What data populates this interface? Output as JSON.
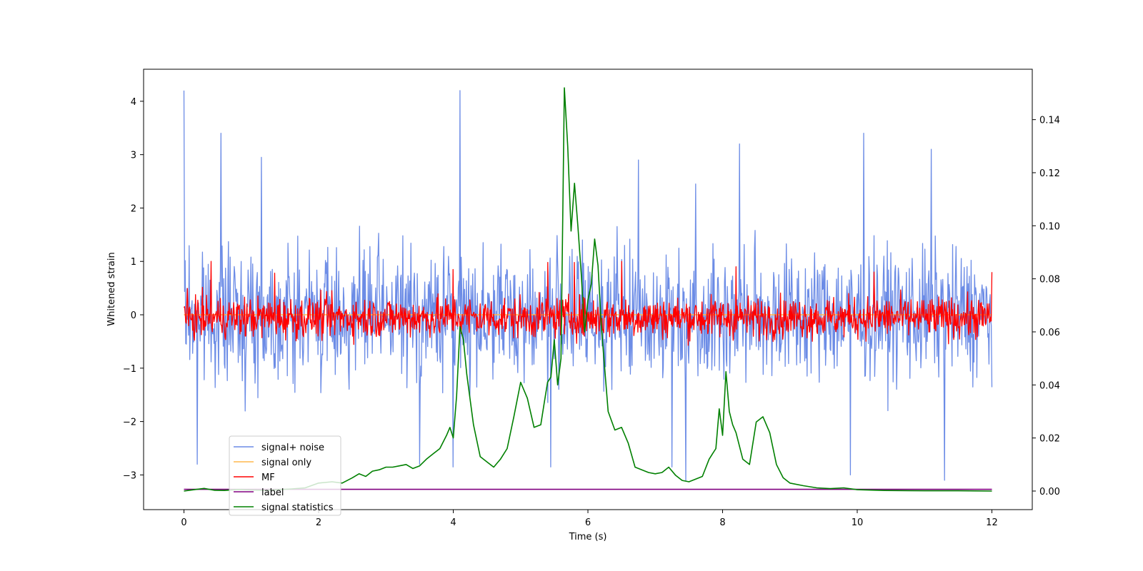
{
  "chart_data": {
    "type": "line",
    "title": "",
    "xlabel": "Time (s)",
    "ylabel": "Whitened strain",
    "y2label": "",
    "xlim": [
      -0.6,
      12.6
    ],
    "ylim": [
      -3.65,
      4.6
    ],
    "y2lim": [
      -0.007,
      0.159
    ],
    "xticks": [
      0,
      2,
      4,
      6,
      8,
      10,
      12
    ],
    "xtick_labels": [
      "0",
      "2",
      "4",
      "6",
      "8",
      "10",
      "12"
    ],
    "yticks": [
      -3,
      -2,
      -1,
      0,
      1,
      2,
      3,
      4
    ],
    "ytick_labels": [
      "−3",
      "−2",
      "−1",
      "0",
      "1",
      "2",
      "3",
      "4"
    ],
    "y2ticks": [
      0,
      0.02,
      0.04,
      0.06,
      0.08,
      0.1,
      0.12,
      0.14
    ],
    "y2tick_labels": [
      "0.00",
      "0.02",
      "0.04",
      "0.06",
      "0.08",
      "0.10",
      "0.12",
      "0.14"
    ],
    "grid": false,
    "legend_position": "lower-left",
    "series": [
      {
        "name": "signal+ noise",
        "axis": "left",
        "color": "#6c8ce6",
        "style": "noise",
        "x_range": [
          0,
          12
        ],
        "amplitude": 1.1,
        "center": 0,
        "peaks": [
          [
            0.0,
            4.2
          ],
          [
            0.55,
            3.4
          ],
          [
            1.15,
            2.95
          ],
          [
            4.1,
            4.2
          ],
          [
            6.75,
            2.9
          ],
          [
            7.6,
            2.45
          ],
          [
            8.25,
            3.2
          ],
          [
            10.1,
            3.4
          ],
          [
            11.1,
            3.1
          ],
          [
            7.25,
            -2.85
          ],
          [
            7.45,
            -3.1
          ],
          [
            11.3,
            -3.1
          ],
          [
            4.0,
            -2.85
          ],
          [
            0.2,
            -2.8
          ],
          [
            9.9,
            -3.0
          ],
          [
            5.45,
            -2.85
          ],
          [
            3.5,
            -2.8
          ]
        ]
      },
      {
        "name": "signal only",
        "axis": "left",
        "color": "#ffb84d",
        "style": "flat",
        "x_range": [
          0,
          12
        ],
        "value": 0
      },
      {
        "name": "MF",
        "axis": "left",
        "color": "#ff0000",
        "style": "noise",
        "x_range": [
          0,
          12
        ],
        "amplitude": 0.35,
        "center": -0.05,
        "peaks": [
          [
            0.4,
            1.0
          ],
          [
            1.35,
            0.78
          ],
          [
            4.0,
            0.85
          ],
          [
            5.4,
            0.98
          ],
          [
            5.8,
            0.98
          ],
          [
            6.5,
            1.0
          ],
          [
            8.2,
            0.9
          ],
          [
            10.25,
            0.8
          ],
          [
            12.0,
            0.8
          ]
        ]
      },
      {
        "name": "label",
        "axis": "left",
        "color": "#800080",
        "style": "flat",
        "x_range": [
          0,
          12
        ],
        "value": -3.27
      },
      {
        "name": "signal statistics",
        "axis": "right",
        "color": "#008000",
        "style": "line",
        "x": [
          0,
          0.15,
          0.3,
          0.45,
          0.6,
          0.8,
          1.0,
          1.2,
          1.4,
          1.6,
          1.8,
          2.0,
          2.2,
          2.35,
          2.5,
          2.6,
          2.7,
          2.8,
          2.9,
          3.0,
          3.1,
          3.2,
          3.3,
          3.4,
          3.5,
          3.6,
          3.7,
          3.8,
          3.9,
          3.95,
          4.0,
          4.05,
          4.1,
          4.15,
          4.2,
          4.3,
          4.4,
          4.5,
          4.6,
          4.7,
          4.8,
          4.9,
          5.0,
          5.1,
          5.2,
          5.3,
          5.35,
          5.4,
          5.45,
          5.5,
          5.55,
          5.6,
          5.65,
          5.7,
          5.75,
          5.8,
          5.85,
          5.9,
          5.95,
          6.0,
          6.05,
          6.1,
          6.15,
          6.2,
          6.3,
          6.4,
          6.5,
          6.6,
          6.7,
          6.8,
          6.9,
          7.0,
          7.1,
          7.2,
          7.3,
          7.4,
          7.5,
          7.6,
          7.7,
          7.8,
          7.85,
          7.9,
          7.95,
          8.0,
          8.05,
          8.1,
          8.15,
          8.2,
          8.3,
          8.4,
          8.5,
          8.6,
          8.7,
          8.8,
          8.9,
          9.0,
          9.2,
          9.4,
          9.6,
          9.8,
          10.0,
          10.4,
          11.0,
          11.5,
          12.0
        ],
        "y": [
          0.0,
          0.0005,
          0.001,
          0.0003,
          0.0002,
          0.0006,
          0.0004,
          0.0003,
          0.0005,
          0.0008,
          0.0012,
          0.003,
          0.0035,
          0.003,
          0.005,
          0.0065,
          0.0055,
          0.0075,
          0.008,
          0.009,
          0.009,
          0.0095,
          0.01,
          0.0085,
          0.0095,
          0.012,
          0.014,
          0.016,
          0.021,
          0.024,
          0.02,
          0.036,
          0.062,
          0.057,
          0.044,
          0.025,
          0.013,
          0.011,
          0.009,
          0.012,
          0.016,
          0.028,
          0.041,
          0.035,
          0.024,
          0.025,
          0.033,
          0.041,
          0.043,
          0.057,
          0.04,
          0.05,
          0.152,
          0.13,
          0.098,
          0.116,
          0.1,
          0.082,
          0.06,
          0.072,
          0.078,
          0.095,
          0.085,
          0.062,
          0.03,
          0.023,
          0.024,
          0.018,
          0.009,
          0.008,
          0.007,
          0.0065,
          0.007,
          0.009,
          0.006,
          0.004,
          0.0035,
          0.0045,
          0.0055,
          0.012,
          0.014,
          0.016,
          0.031,
          0.021,
          0.045,
          0.03,
          0.025,
          0.022,
          0.012,
          0.01,
          0.026,
          0.028,
          0.022,
          0.01,
          0.005,
          0.003,
          0.002,
          0.0012,
          0.0009,
          0.0012,
          0.0005,
          0.0002,
          0.0001,
          0.0001,
          0.0
        ]
      }
    ]
  },
  "legend": {
    "items": [
      {
        "label": "signal+ noise",
        "color": "#6c8ce6"
      },
      {
        "label": "signal only",
        "color": "#ffb84d"
      },
      {
        "label": "MF",
        "color": "#ff0000"
      },
      {
        "label": "label",
        "color": "#800080"
      },
      {
        "label": "signal statistics",
        "color": "#008000"
      }
    ]
  }
}
